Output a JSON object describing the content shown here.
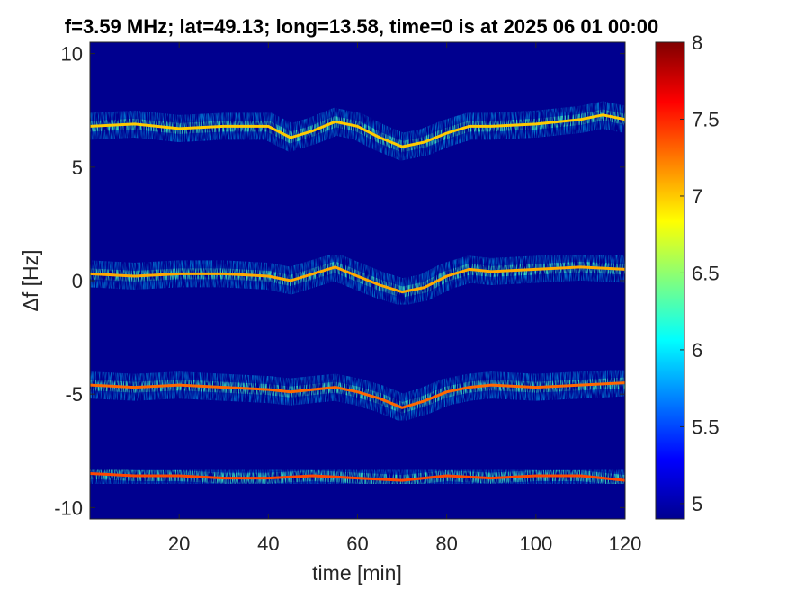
{
  "chart_data": {
    "type": "heatmap",
    "title": "f=3.59 MHz;  lat=49.13; long=13.58, time=0 is at 2025 06 01 00:00",
    "xlabel": "time [min]",
    "ylabel": "Δf [Hz]",
    "xlim": [
      0,
      120
    ],
    "ylim": [
      -10.5,
      10.5
    ],
    "xticks": [
      20,
      40,
      60,
      80,
      100,
      120
    ],
    "xtick_labels": [
      "20",
      "40",
      "60",
      "80",
      "100",
      "120"
    ],
    "yticks": [
      10,
      5,
      0,
      -5,
      -10
    ],
    "ytick_labels": [
      "10",
      "5",
      "0",
      "-5",
      "-10"
    ],
    "colorbar": {
      "colormap": "jet",
      "range": [
        4.9,
        8
      ],
      "ticks": [
        5,
        5.5,
        6,
        6.5,
        7,
        7.5,
        8
      ],
      "tick_labels": [
        "5",
        "5.5",
        "6",
        "6.5",
        "7",
        "7.5",
        "8"
      ]
    },
    "background_color": "#00008f",
    "traces": [
      {
        "name": "",
        "intensity": 7.0,
        "points": [
          [
            0,
            6.8
          ],
          [
            10,
            6.9
          ],
          [
            20,
            6.7
          ],
          [
            30,
            6.8
          ],
          [
            40,
            6.8
          ],
          [
            45,
            6.3
          ],
          [
            50,
            6.6
          ],
          [
            55,
            7.0
          ],
          [
            60,
            6.8
          ],
          [
            65,
            6.3
          ],
          [
            70,
            5.9
          ],
          [
            75,
            6.1
          ],
          [
            80,
            6.5
          ],
          [
            85,
            6.8
          ],
          [
            90,
            6.8
          ],
          [
            100,
            6.9
          ],
          [
            110,
            7.1
          ],
          [
            115,
            7.3
          ],
          [
            120,
            7.1
          ]
        ]
      },
      {
        "name": "",
        "intensity": 7.1,
        "points": [
          [
            0,
            0.3
          ],
          [
            10,
            0.2
          ],
          [
            20,
            0.3
          ],
          [
            30,
            0.3
          ],
          [
            40,
            0.2
          ],
          [
            45,
            0.0
          ],
          [
            50,
            0.3
          ],
          [
            55,
            0.6
          ],
          [
            60,
            0.2
          ],
          [
            65,
            -0.2
          ],
          [
            70,
            -0.5
          ],
          [
            75,
            -0.3
          ],
          [
            80,
            0.2
          ],
          [
            85,
            0.5
          ],
          [
            90,
            0.4
          ],
          [
            100,
            0.5
          ],
          [
            110,
            0.6
          ],
          [
            120,
            0.5
          ]
        ]
      },
      {
        "name": "",
        "intensity": 7.3,
        "points": [
          [
            0,
            -4.6
          ],
          [
            10,
            -4.7
          ],
          [
            20,
            -4.6
          ],
          [
            30,
            -4.7
          ],
          [
            40,
            -4.8
          ],
          [
            45,
            -4.9
          ],
          [
            50,
            -4.8
          ],
          [
            55,
            -4.7
          ],
          [
            60,
            -4.9
          ],
          [
            65,
            -5.2
          ],
          [
            70,
            -5.6
          ],
          [
            75,
            -5.3
          ],
          [
            80,
            -4.9
          ],
          [
            85,
            -4.7
          ],
          [
            90,
            -4.6
          ],
          [
            100,
            -4.7
          ],
          [
            110,
            -4.6
          ],
          [
            120,
            -4.5
          ]
        ]
      },
      {
        "name": "",
        "intensity": 7.4,
        "points": [
          [
            0,
            -8.5
          ],
          [
            10,
            -8.6
          ],
          [
            20,
            -8.6
          ],
          [
            30,
            -8.7
          ],
          [
            40,
            -8.7
          ],
          [
            50,
            -8.6
          ],
          [
            60,
            -8.7
          ],
          [
            70,
            -8.8
          ],
          [
            80,
            -8.6
          ],
          [
            90,
            -8.7
          ],
          [
            100,
            -8.6
          ],
          [
            110,
            -8.6
          ],
          [
            120,
            -8.8
          ]
        ]
      }
    ]
  }
}
